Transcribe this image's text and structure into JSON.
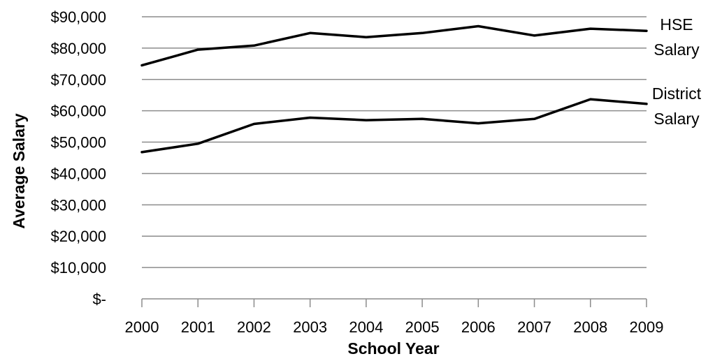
{
  "chart_data": {
    "type": "line",
    "title": "",
    "xlabel": "School Year",
    "ylabel": "Average Salary",
    "categories": [
      "2000",
      "2001",
      "2002",
      "2003",
      "2004",
      "2005",
      "2006",
      "2007",
      "2008",
      "2009"
    ],
    "ylim": [
      0,
      90000
    ],
    "yticks": [
      0,
      10000,
      20000,
      30000,
      40000,
      50000,
      60000,
      70000,
      80000,
      90000
    ],
    "ytick_labels": [
      "$-",
      "$10,000",
      "$20,000",
      "$30,000",
      "$40,000",
      "$50,000",
      "$60,000",
      "$70,000",
      "$80,000",
      "$90,000"
    ],
    "grid": true,
    "legend": "none",
    "series": [
      {
        "name": "HSE Salary",
        "label_lines": [
          "HSE",
          "Salary"
        ],
        "values": [
          74500,
          79500,
          80800,
          84800,
          83500,
          84800,
          87000,
          84000,
          86200,
          85500
        ],
        "color": "#000000"
      },
      {
        "name": "District Salary",
        "label_lines": [
          "District",
          "Salary"
        ],
        "values": [
          46800,
          49500,
          55800,
          57800,
          57000,
          57400,
          56000,
          57400,
          63700,
          62200
        ],
        "color": "#000000"
      }
    ]
  }
}
